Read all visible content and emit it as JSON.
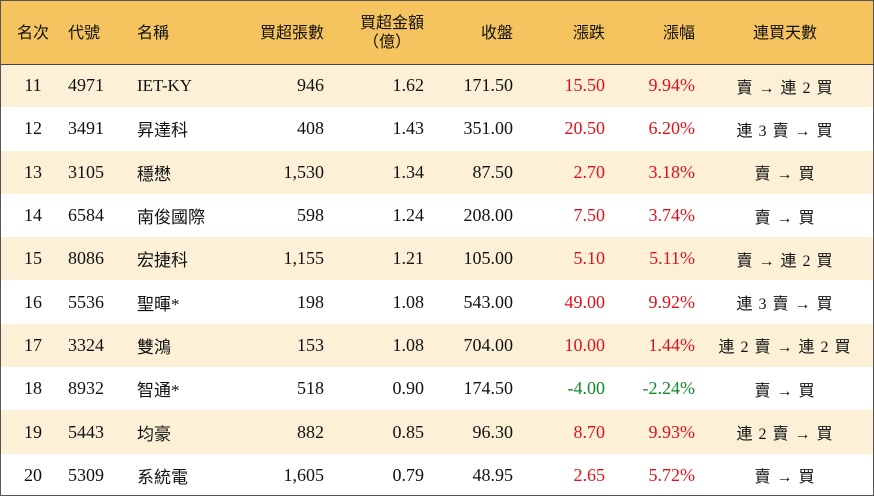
{
  "header": {
    "rank": "名次",
    "code": "代號",
    "name": "名稱",
    "volume": "買超張數",
    "amount_line1": "買超金額",
    "amount_line2": "（億）",
    "close": "收盤",
    "change": "漲跌",
    "pct": "漲幅",
    "trend": "連買天數"
  },
  "colors": {
    "header_bg": "#F5C45E",
    "odd_row_bg": "#FCF1D7",
    "up": "#E0111B",
    "down": "#118A2C"
  },
  "rows": [
    {
      "rank": "11",
      "code": "4971",
      "name": "IET-KY",
      "volume": "946",
      "amount": "1.62",
      "close": "171.50",
      "change": "15.50",
      "pct": "9.94%",
      "trend": "賣 → 連 2 買",
      "dir": "up"
    },
    {
      "rank": "12",
      "code": "3491",
      "name": "昇達科",
      "volume": "408",
      "amount": "1.43",
      "close": "351.00",
      "change": "20.50",
      "pct": "6.20%",
      "trend": "連 3 賣 → 買",
      "dir": "up"
    },
    {
      "rank": "13",
      "code": "3105",
      "name": "穩懋",
      "volume": "1,530",
      "amount": "1.34",
      "close": "87.50",
      "change": "2.70",
      "pct": "3.18%",
      "trend": "賣 → 買",
      "dir": "up"
    },
    {
      "rank": "14",
      "code": "6584",
      "name": "南俊國際",
      "volume": "598",
      "amount": "1.24",
      "close": "208.00",
      "change": "7.50",
      "pct": "3.74%",
      "trend": "賣 → 買",
      "dir": "up"
    },
    {
      "rank": "15",
      "code": "8086",
      "name": "宏捷科",
      "volume": "1,155",
      "amount": "1.21",
      "close": "105.00",
      "change": "5.10",
      "pct": "5.11%",
      "trend": "賣 → 連 2 買",
      "dir": "up"
    },
    {
      "rank": "16",
      "code": "5536",
      "name": "聖暉*",
      "volume": "198",
      "amount": "1.08",
      "close": "543.00",
      "change": "49.00",
      "pct": "9.92%",
      "trend": "連 3 賣 → 買",
      "dir": "up"
    },
    {
      "rank": "17",
      "code": "3324",
      "name": "雙鴻",
      "volume": "153",
      "amount": "1.08",
      "close": "704.00",
      "change": "10.00",
      "pct": "1.44%",
      "trend": "連 2 賣 → 連 2 買",
      "dir": "up"
    },
    {
      "rank": "18",
      "code": "8932",
      "name": "智通*",
      "volume": "518",
      "amount": "0.90",
      "close": "174.50",
      "change": "-4.00",
      "pct": "-2.24%",
      "trend": "賣 → 買",
      "dir": "down"
    },
    {
      "rank": "19",
      "code": "5443",
      "name": "均豪",
      "volume": "882",
      "amount": "0.85",
      "close": "96.30",
      "change": "8.70",
      "pct": "9.93%",
      "trend": "連 2 賣 → 買",
      "dir": "up"
    },
    {
      "rank": "20",
      "code": "5309",
      "name": "系統電",
      "volume": "1,605",
      "amount": "0.79",
      "close": "48.95",
      "change": "2.65",
      "pct": "5.72%",
      "trend": "賣 → 買",
      "dir": "up"
    }
  ]
}
